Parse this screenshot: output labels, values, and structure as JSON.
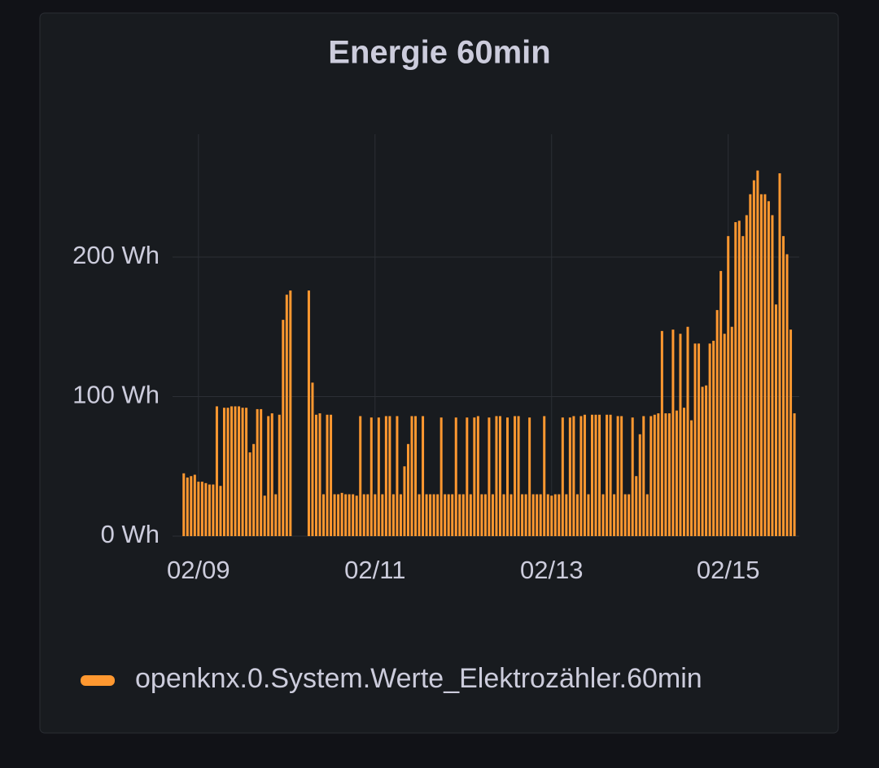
{
  "chart_data": {
    "type": "bar",
    "title": "Energie 60min",
    "categories": [
      null,
      null,
      null,
      null,
      "02/09",
      null,
      null,
      null,
      null,
      null,
      null,
      null,
      null,
      null,
      null,
      null,
      null,
      null,
      null,
      null,
      null,
      null,
      null,
      null,
      null,
      null,
      null,
      null,
      null,
      null,
      null,
      null,
      null,
      null,
      null,
      null,
      null,
      null,
      null,
      null,
      null,
      null,
      null,
      null,
      null,
      null,
      null,
      null,
      null,
      null,
      null,
      null,
      "02/11",
      null,
      null,
      null,
      null,
      null,
      null,
      null,
      null,
      null,
      null,
      null,
      null,
      null,
      null,
      null,
      null,
      null,
      null,
      null,
      null,
      null,
      null,
      null,
      null,
      null,
      null,
      null,
      null,
      null,
      null,
      null,
      null,
      null,
      null,
      null,
      null,
      null,
      null,
      null,
      null,
      null,
      null,
      null,
      null,
      null,
      null,
      null,
      "02/13",
      null,
      null,
      null,
      null,
      null,
      null,
      null,
      null,
      null,
      null,
      null,
      null,
      null,
      null,
      null,
      null,
      null,
      null,
      null,
      null,
      null,
      null,
      null,
      null,
      null,
      null,
      null,
      null,
      null,
      null,
      null,
      null,
      null,
      null,
      null,
      null,
      null,
      null,
      null,
      null,
      null,
      null,
      null,
      null,
      null,
      null,
      null,
      "02/15",
      null,
      null,
      null,
      null,
      null,
      null,
      null,
      null,
      null,
      null,
      null,
      null,
      null,
      null,
      null,
      null,
      null,
      null
    ],
    "series": [
      {
        "name": "openknx.0.System.Werte_Elektrozähler.60min",
        "color": "#ff9830",
        "values": [
          45,
          42,
          43,
          44,
          39,
          39,
          38,
          37,
          37,
          93,
          36,
          92,
          92,
          93,
          93,
          93,
          92,
          92,
          60,
          66,
          91,
          91,
          29,
          86,
          88,
          30,
          87,
          155,
          173,
          176,
          null,
          null,
          null,
          null,
          176,
          110,
          87,
          88,
          30,
          87,
          87,
          30,
          30,
          31,
          30,
          30,
          30,
          29,
          86,
          30,
          30,
          85,
          30,
          85,
          30,
          86,
          86,
          30,
          86,
          30,
          50,
          66,
          86,
          86,
          30,
          86,
          30,
          30,
          30,
          30,
          85,
          30,
          30,
          30,
          85,
          30,
          30,
          85,
          30,
          85,
          86,
          30,
          30,
          85,
          30,
          86,
          86,
          30,
          85,
          30,
          86,
          86,
          30,
          30,
          85,
          30,
          30,
          30,
          86,
          30,
          29,
          30,
          30,
          85,
          30,
          85,
          86,
          30,
          86,
          87,
          30,
          87,
          87,
          87,
          30,
          87,
          87,
          30,
          86,
          86,
          30,
          30,
          85,
          43,
          73,
          86,
          30,
          86,
          87,
          88,
          147,
          88,
          88,
          148,
          90,
          145,
          92,
          150,
          83,
          138,
          138,
          107,
          108,
          138,
          140,
          162,
          190,
          145,
          215,
          150,
          225,
          226,
          215,
          230,
          245,
          255,
          262,
          245,
          245,
          240,
          230,
          166,
          260,
          215,
          202,
          148,
          88
        ]
      }
    ],
    "ylim": [
      0,
      288
    ],
    "yticks": [
      {
        "value": 0,
        "label": "0 Wh"
      },
      {
        "value": 100,
        "label": "100 Wh"
      },
      {
        "value": 200,
        "label": "200 Wh"
      }
    ],
    "grid": true
  }
}
